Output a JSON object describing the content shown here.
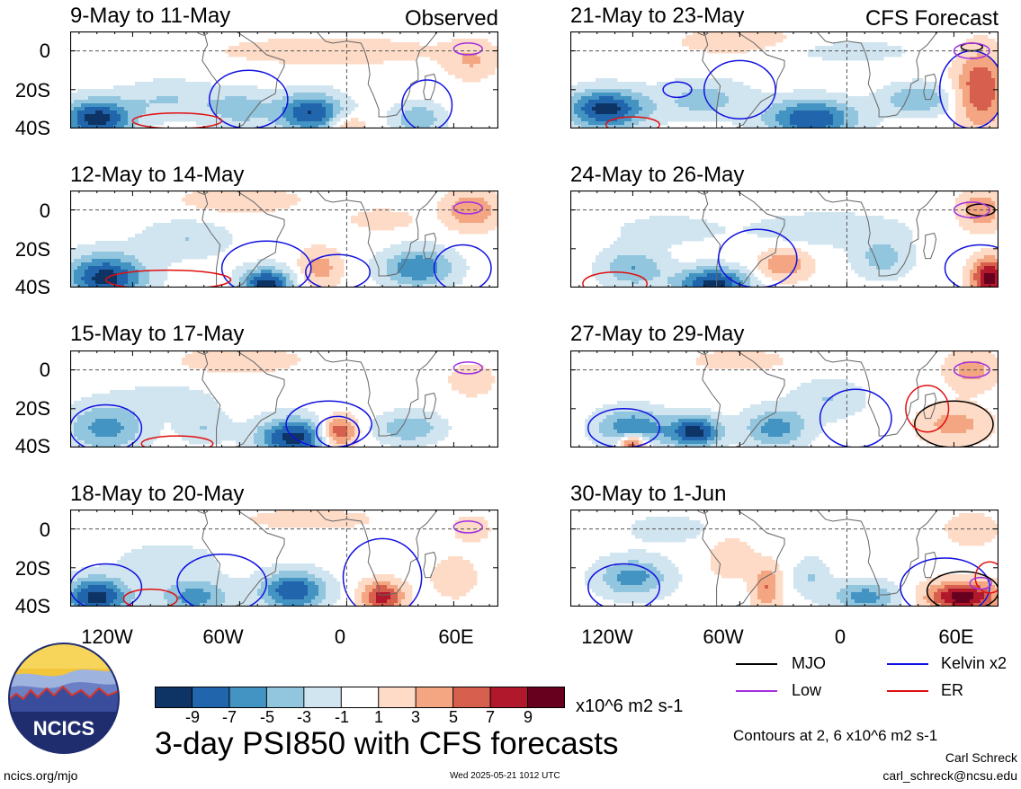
{
  "headers": {
    "left": "Observed",
    "right": "CFS Forecast"
  },
  "left_panels": [
    {
      "title": "9-May to 11-May"
    },
    {
      "title": "12-May to 14-May"
    },
    {
      "title": "15-May to 17-May"
    },
    {
      "title": "18-May to 20-May"
    }
  ],
  "right_panels": [
    {
      "title": "21-May to 23-May"
    },
    {
      "title": "24-May to 26-May"
    },
    {
      "title": "27-May to 29-May"
    },
    {
      "title": "30-May to 1-Jun"
    }
  ],
  "y_ticks": [
    "0",
    "20S",
    "40S"
  ],
  "x_ticks": [
    "120W",
    "60W",
    "0",
    "60E"
  ],
  "legend": {
    "items": [
      {
        "label": "MJO",
        "color": "#000000"
      },
      {
        "label": "Kelvin x2",
        "color": "#1010e0"
      },
      {
        "label": "Low",
        "color": "#a030e0"
      },
      {
        "label": "ER",
        "color": "#e01010"
      }
    ],
    "contours_note": "Contours at 2, 6 x10^6 m2 s-1"
  },
  "colorbar": {
    "ticks": [
      "-9",
      "-7",
      "-5",
      "-3",
      "-1",
      "1",
      "3",
      "5",
      "7",
      "9"
    ],
    "units": "x10^6 m2 s-1",
    "colors": [
      "#0d3464",
      "#2166ac",
      "#4393c3",
      "#92c5de",
      "#d1e5f0",
      "#ffffff",
      "#fddbc7",
      "#f4a582",
      "#d6604d",
      "#b2182b",
      "#67001f"
    ]
  },
  "main_title": "3-day PSI850 with CFS forecasts",
  "logo_text": "NCICS",
  "footer": {
    "left": "ncics.org/mjo",
    "center": "Wed 2025-05-21 1012 UTC",
    "author": "Carl Schreck",
    "email": "carl_schreck@ncsu.edu"
  },
  "chart_data": {
    "type": "heatmap",
    "variable": "3-day PSI850",
    "units": "x10^6 m2 s-1",
    "levels": [
      -9,
      -7,
      -5,
      -3,
      -1,
      1,
      3,
      5,
      7,
      9
    ],
    "xlim": [
      -155,
      85
    ],
    "ylim": [
      -40,
      10
    ],
    "x_tick_values": [
      -120,
      -60,
      0,
      60
    ],
    "y_tick_values": [
      0,
      -20,
      -40
    ]
  }
}
